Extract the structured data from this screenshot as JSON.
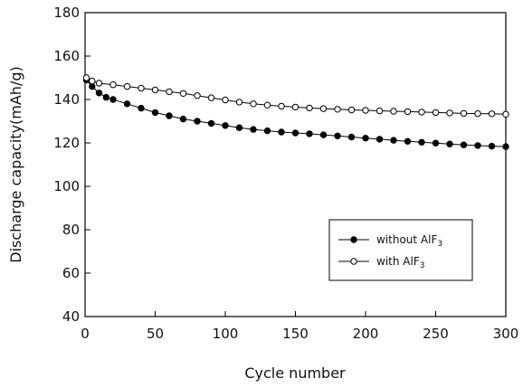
{
  "chart_data": {
    "type": "line",
    "title": "",
    "xlabel": "Cycle number",
    "ylabel": "Discharge capacity(mAh/g)",
    "xlim": [
      0,
      300
    ],
    "ylim": [
      40,
      180
    ],
    "x_ticks": [
      0,
      50,
      100,
      150,
      200,
      250,
      300
    ],
    "y_ticks": [
      40,
      60,
      80,
      100,
      120,
      140,
      160,
      180
    ],
    "grid": false,
    "legend_position": "lower-right",
    "series": [
      {
        "name": "without AlF3",
        "legend_main": "without AlF",
        "legend_sub": "3",
        "marker": "filled-circle",
        "color": "#000000",
        "x": [
          1,
          5,
          10,
          15,
          20,
          30,
          40,
          50,
          60,
          70,
          80,
          90,
          100,
          110,
          120,
          130,
          140,
          150,
          160,
          170,
          180,
          190,
          200,
          210,
          220,
          230,
          240,
          250,
          260,
          270,
          280,
          290,
          300
        ],
        "y": [
          149,
          146,
          143,
          141,
          140,
          138,
          136,
          134,
          132.5,
          131,
          130,
          129,
          128,
          127,
          126.2,
          125.6,
          125,
          124.6,
          124.2,
          123.7,
          123.2,
          122.7,
          122.2,
          121.7,
          121.2,
          120.7,
          120.3,
          119.9,
          119.5,
          119.1,
          118.8,
          118.5,
          118.3
        ]
      },
      {
        "name": "with AlF3",
        "legend_main": "with AlF",
        "legend_sub": "3",
        "marker": "open-circle",
        "color": "#000000",
        "x": [
          1,
          5,
          10,
          20,
          30,
          40,
          50,
          60,
          70,
          80,
          90,
          100,
          110,
          120,
          130,
          140,
          150,
          160,
          170,
          180,
          190,
          200,
          210,
          220,
          230,
          240,
          250,
          260,
          270,
          280,
          290,
          300
        ],
        "y": [
          150,
          148.5,
          147.5,
          146.8,
          146,
          145.2,
          144.4,
          143.6,
          142.8,
          141.8,
          140.8,
          139.8,
          138.8,
          138,
          137.4,
          136.9,
          136.5,
          136.1,
          135.8,
          135.5,
          135.2,
          135,
          134.8,
          134.6,
          134.4,
          134.2,
          134,
          133.8,
          133.6,
          133.5,
          133.4,
          133.2
        ]
      }
    ]
  }
}
